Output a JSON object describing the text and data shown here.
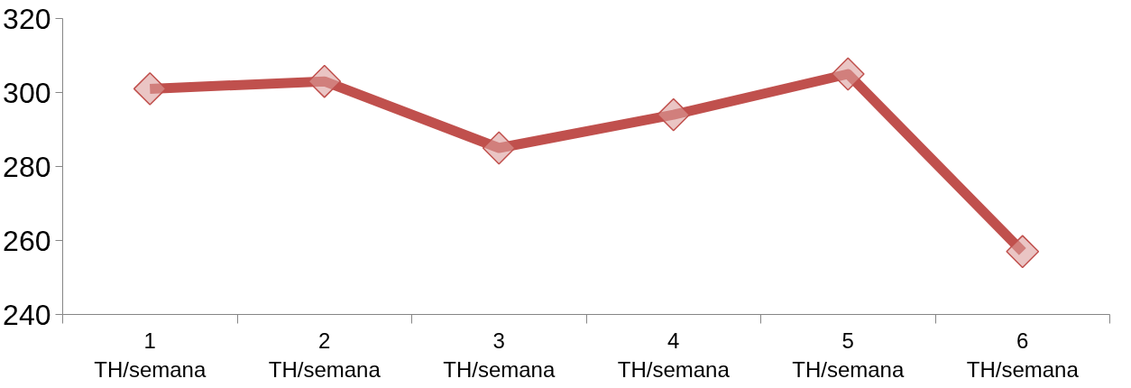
{
  "chart_data": {
    "type": "line",
    "categories": [
      "1\nTH/semana",
      "2\nTH/semana",
      "3\nTH/semana",
      "4\nTH/semana",
      "5\nTH/semana",
      "6\nTH/semana"
    ],
    "series": [
      {
        "color": "#c0504d",
        "values": [
          301,
          303,
          285,
          294,
          305,
          257
        ]
      }
    ],
    "ylim": [
      240,
      320
    ],
    "yticks": [
      240,
      260,
      280,
      300,
      320
    ],
    "grid": false,
    "marker": "diamond",
    "line_style": "solid"
  }
}
